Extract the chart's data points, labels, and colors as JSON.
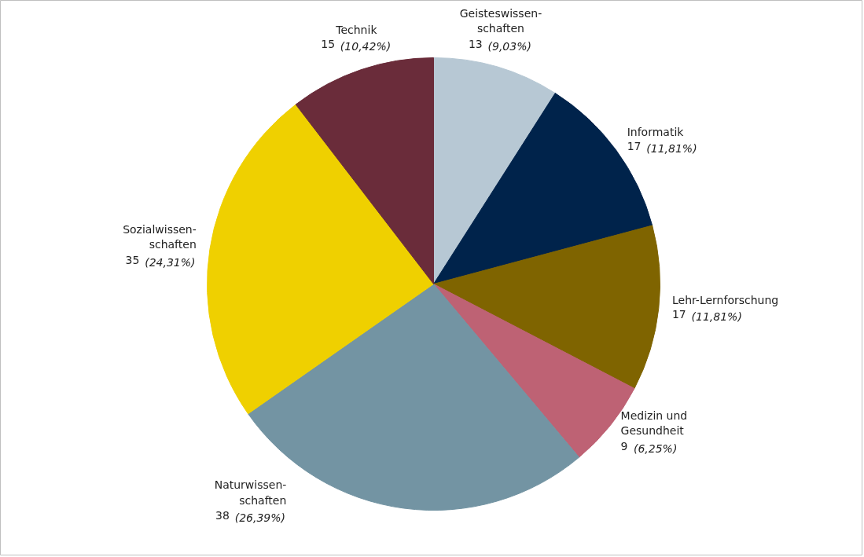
{
  "chart_data": {
    "type": "pie",
    "categories": [
      "Geisteswissen-\nschaften",
      "Informatik",
      "Lehr-Lernforschung",
      "Medizin und\nGesundheit",
      "Naturwissen-\nschaften",
      "Sozialwissen-\nschaften",
      "Technik"
    ],
    "values": [
      13,
      17,
      17,
      9,
      38,
      35,
      15
    ],
    "colors": [
      "#b7c8d4",
      "#00234b",
      "#7f6400",
      "#be6274",
      "#7394a3",
      "#efd000",
      "#6a2c3a"
    ],
    "value_labels": [
      "13 (9,03%)",
      "17 (11,81%)",
      "17 (11,81%)",
      "9 (6,25%)",
      "38 (26,39%)",
      "35 (24,31%)",
      "15 (10,42%)"
    ]
  }
}
